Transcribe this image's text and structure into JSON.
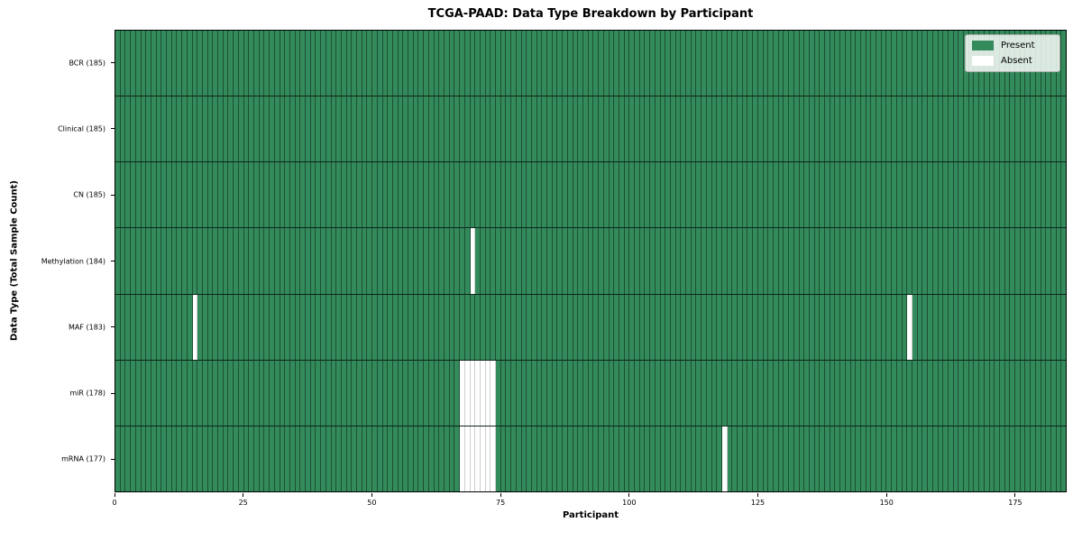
{
  "chart_data": {
    "type": "heatmap",
    "title": "TCGA-PAAD: Data Type Breakdown by Participant",
    "xlabel": "Participant",
    "ylabel": "Data Type (Total Sample Count)",
    "x_ticks": [
      0,
      25,
      50,
      75,
      100,
      125,
      150,
      175
    ],
    "xlim": [
      0,
      185
    ],
    "n_participants": 185,
    "grid": false,
    "legend_position": "upper-right",
    "legend": [
      {
        "label": "Present",
        "color": "#338a5b"
      },
      {
        "label": "Absent",
        "color": "#ffffff"
      }
    ],
    "rows": [
      {
        "data_type": "BCR",
        "label": "BCR (185)",
        "total_samples": 185,
        "absent_participants": []
      },
      {
        "data_type": "Clinical",
        "label": "Clinical (185)",
        "total_samples": 185,
        "absent_participants": []
      },
      {
        "data_type": "CN",
        "label": "CN (185)",
        "total_samples": 185,
        "absent_participants": []
      },
      {
        "data_type": "Methylation",
        "label": "Methylation (184)",
        "total_samples": 184,
        "absent_participants": [
          69
        ]
      },
      {
        "data_type": "MAF",
        "label": "MAF (183)",
        "total_samples": 183,
        "absent_participants": [
          15,
          154
        ]
      },
      {
        "data_type": "miR",
        "label": "miR (178)",
        "total_samples": 178,
        "absent_participants": [
          67,
          68,
          69,
          70,
          71,
          72,
          73
        ]
      },
      {
        "data_type": "mRNA",
        "label": "mRNA (177)",
        "total_samples": 177,
        "absent_participants": [
          67,
          68,
          69,
          70,
          71,
          72,
          73,
          118
        ]
      }
    ],
    "colors": {
      "present": "#338a5b",
      "absent": "#ffffff",
      "cell_edge_on_present": "#1d5638",
      "cell_edge_on_absent": "#cfcfcf",
      "plot_border": "#000000"
    }
  }
}
